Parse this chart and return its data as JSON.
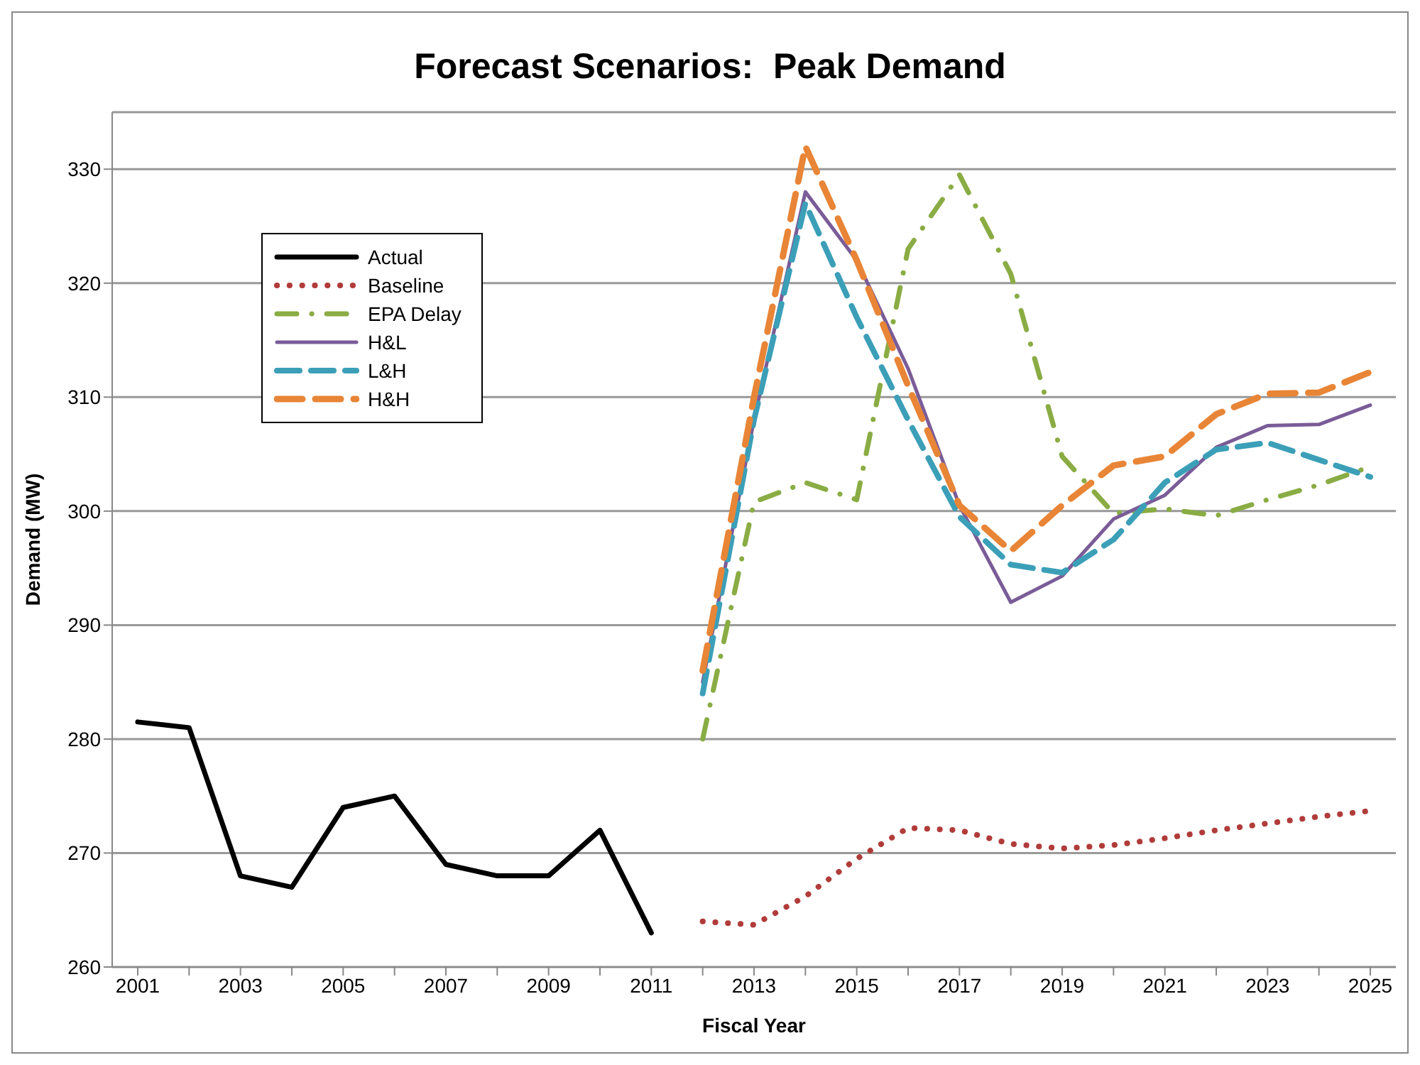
{
  "chart_data": {
    "type": "line",
    "title": "Forecast Scenarios:  Peak Demand",
    "xlabel": "Fiscal Year",
    "ylabel": "Demand (MW)",
    "categories": [
      "2001",
      null,
      "2003",
      null,
      "2005",
      null,
      "2007",
      null,
      "2009",
      null,
      "2011",
      null,
      "2013",
      null,
      "2015",
      null,
      "2017",
      null,
      "2019",
      null,
      "2021",
      null,
      "2023",
      null,
      "2025"
    ],
    "ylim": [
      260,
      335
    ],
    "yticks": [
      260,
      270,
      280,
      290,
      300,
      310,
      320,
      330
    ],
    "grid": "y",
    "legend": "top left",
    "marker": "none",
    "series": [
      {
        "name": "Actual",
        "color": "#000000",
        "line_style": "solid",
        "values": [
          281.5,
          281,
          268,
          267,
          274,
          275,
          269,
          268,
          268,
          272,
          263,
          null,
          null,
          null,
          null,
          null,
          null,
          null,
          null,
          null,
          null,
          null,
          null,
          null,
          null
        ]
      },
      {
        "name": "Baseline",
        "color": "#b03c3a",
        "line_style": "dotted",
        "values": [
          null,
          null,
          null,
          null,
          null,
          null,
          null,
          null,
          null,
          null,
          null,
          264,
          263.7,
          266.2,
          269.5,
          272.2,
          272,
          270.8,
          270.4,
          270.7,
          271.3,
          272,
          272.6,
          273.2,
          273.7
        ]
      },
      {
        "name": "EPA Delay",
        "color": "#8aac44",
        "line_style": "dashdot",
        "values": [
          null,
          null,
          null,
          null,
          null,
          null,
          null,
          null,
          null,
          null,
          null,
          280,
          300.8,
          302.5,
          301,
          323,
          329.5,
          320.8,
          304.8,
          299.8,
          300.2,
          299.6,
          301,
          302.3,
          303.9
        ]
      },
      {
        "name": "H&L",
        "color": "#7a5c98",
        "line_style": "solid",
        "values": [
          null,
          null,
          null,
          null,
          null,
          null,
          null,
          null,
          null,
          null,
          null,
          285,
          308,
          328,
          322,
          312.5,
          300.5,
          292,
          294.3,
          299.3,
          301.4,
          305.6,
          307.5,
          307.6,
          309.3
        ]
      },
      {
        "name": "L&H",
        "color": "#3c9fb8",
        "line_style": "dashed",
        "values": [
          null,
          null,
          null,
          null,
          null,
          null,
          null,
          null,
          null,
          null,
          null,
          284,
          308,
          327,
          317,
          308,
          299.5,
          295.3,
          294.6,
          297.5,
          302.5,
          305.4,
          306,
          304.5,
          303
        ]
      },
      {
        "name": "H&H",
        "color": "#e88536",
        "line_style": "dashed",
        "values": [
          null,
          null,
          null,
          null,
          null,
          null,
          null,
          null,
          null,
          null,
          null,
          286,
          310,
          332,
          322,
          311,
          300.5,
          296.5,
          300.5,
          304,
          304.8,
          308.5,
          310.3,
          310.4,
          312.2
        ]
      }
    ]
  }
}
